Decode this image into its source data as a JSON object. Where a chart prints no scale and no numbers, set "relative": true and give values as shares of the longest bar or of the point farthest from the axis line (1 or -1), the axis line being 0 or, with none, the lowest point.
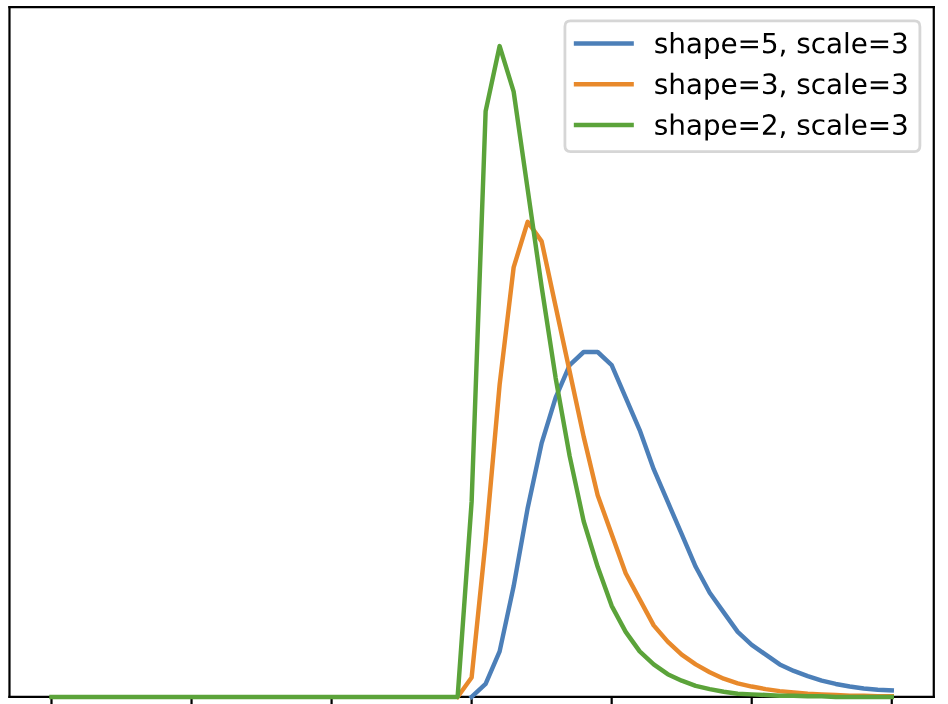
{
  "chart_data": {
    "type": "line",
    "relative": true,
    "legend": "top right",
    "grid": false,
    "categories": [
      null,
      null,
      null,
      null,
      null,
      null,
      null,
      null,
      null,
      null,
      null,
      null,
      null,
      null,
      null,
      null,
      null,
      null,
      null,
      null,
      null,
      null,
      null,
      null,
      null,
      null,
      null,
      null,
      null,
      null,
      null,
      null,
      null,
      null,
      null,
      null,
      null,
      null,
      null,
      null,
      null,
      null,
      null,
      null,
      null,
      null,
      null,
      null,
      null,
      null,
      null,
      null,
      null,
      null,
      null,
      null,
      null,
      null,
      null,
      null,
      null
    ],
    "series": [
      {
        "name": "shape=5, scale=3",
        "color": "#4c7fb8",
        "values": [
          null,
          null,
          null,
          null,
          null,
          null,
          null,
          null,
          null,
          null,
          null,
          null,
          null,
          null,
          null,
          null,
          null,
          null,
          null,
          null,
          null,
          null,
          null,
          null,
          null,
          null,
          null,
          null,
          null,
          null,
          0,
          0.02,
          0.07,
          0.17,
          0.29,
          0.39,
          0.46,
          0.51,
          0.53,
          0.53,
          0.51,
          0.46,
          0.41,
          0.35,
          0.3,
          0.25,
          0.2,
          0.16,
          0.13,
          0.1,
          0.08,
          0.065,
          0.05,
          0.04,
          0.032,
          0.025,
          0.02,
          0.016,
          0.013,
          0.011,
          0.01
        ]
      },
      {
        "name": "shape=3, scale=3",
        "color": "#e8892b",
        "values": [
          null,
          null,
          null,
          null,
          null,
          null,
          null,
          null,
          null,
          null,
          null,
          null,
          null,
          null,
          null,
          null,
          null,
          null,
          null,
          null,
          null,
          null,
          null,
          null,
          null,
          null,
          null,
          null,
          null,
          0,
          0.03,
          0.24,
          0.48,
          0.66,
          0.73,
          0.7,
          0.6,
          0.5,
          0.4,
          0.31,
          0.25,
          0.19,
          0.15,
          0.11,
          0.085,
          0.065,
          0.05,
          0.038,
          0.028,
          0.021,
          0.016,
          0.012,
          0.009,
          0.007,
          0.005,
          0.004,
          0.003,
          0.002,
          0.002,
          0.001,
          0.001
        ]
      },
      {
        "name": "shape=2, scale=3",
        "color": "#5ba33a",
        "values": [
          0,
          0,
          0,
          0,
          0,
          0,
          0,
          0,
          0,
          0,
          0,
          0,
          0,
          0,
          0,
          0,
          0,
          0,
          0,
          0,
          0,
          0,
          0,
          0,
          0,
          0,
          0,
          0,
          0,
          0,
          0.3,
          0.9,
          1,
          0.93,
          0.78,
          0.63,
          0.49,
          0.37,
          0.27,
          0.2,
          0.14,
          0.1,
          0.07,
          0.05,
          0.035,
          0.025,
          0.017,
          0.012,
          0.008,
          0.005,
          0.004,
          0.003,
          0.002,
          0.002,
          0.001,
          0.001,
          0,
          0,
          0,
          0,
          0
        ]
      }
    ]
  }
}
